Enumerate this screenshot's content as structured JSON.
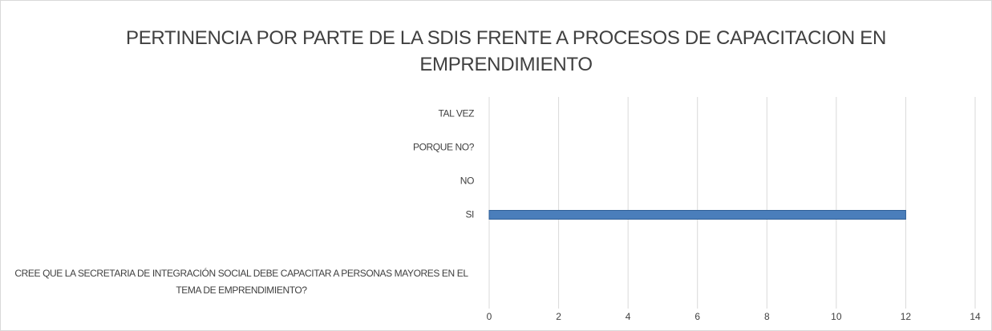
{
  "chart_data": {
    "type": "bar",
    "orientation": "horizontal",
    "title": "PERTINENCIA POR PARTE DE LA SDIS FRENTE A PROCESOS DE CAPACITACION EN EMPRENDIMIENTO",
    "categories": [
      "TAL VEZ",
      "PORQUE NO?",
      "NO",
      "SI",
      "CREE QUE LA SECRETARIA DE INTEGRACIÓN SOCIAL DEBE CAPACITAR A PERSONAS MAYORES EN EL TEMA DE EMPRENDIMIENTO?"
    ],
    "values": [
      0,
      0,
      0,
      12,
      null
    ],
    "color": "#4a7ebb",
    "xlim": [
      0,
      14
    ],
    "xticks": [
      0,
      2,
      4,
      6,
      8,
      10,
      12,
      14
    ],
    "grid": true
  }
}
